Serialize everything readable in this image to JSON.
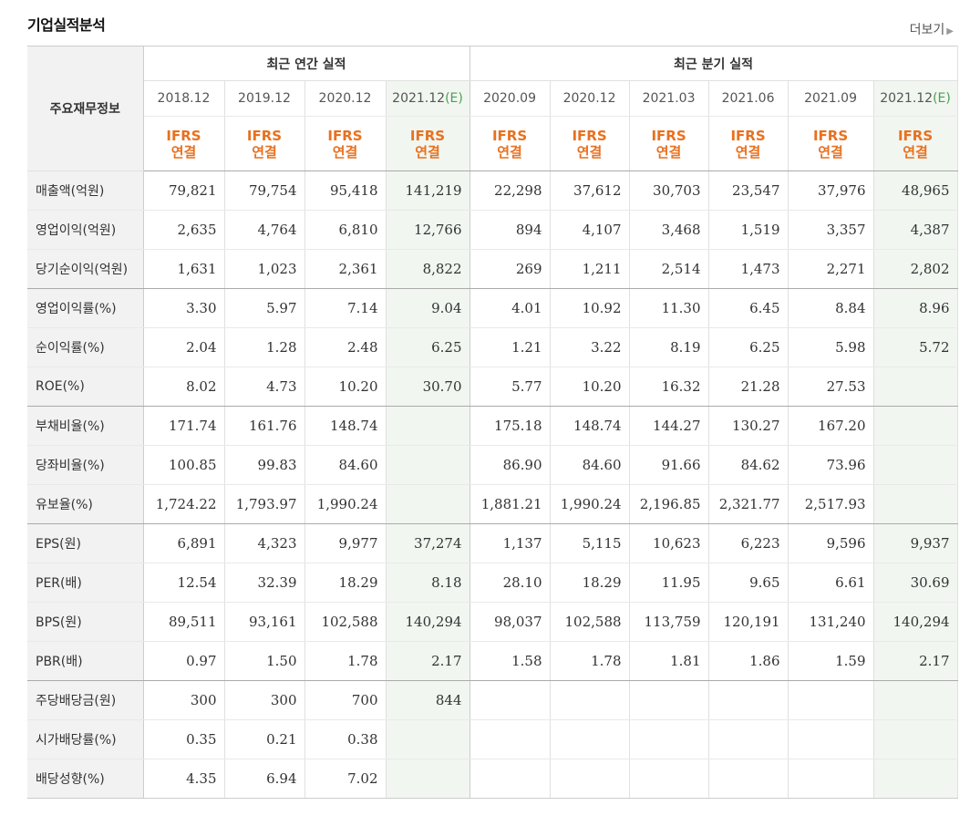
{
  "header": {
    "title": "기업실적분석",
    "more_label": "더보기"
  },
  "table": {
    "row_header_title": "주요재무정보",
    "annual_group_label": "최근 연간 실적",
    "quarter_group_label": "최근 분기 실적",
    "ifrs_line1": "IFRS",
    "ifrs_line2": "연결",
    "estimate_mark": "(E)",
    "annual_periods": [
      "2018.12",
      "2019.12",
      "2020.12",
      "2021.12"
    ],
    "annual_estimate": [
      false,
      false,
      false,
      true
    ],
    "quarter_periods": [
      "2020.09",
      "2020.12",
      "2021.03",
      "2021.06",
      "2021.09",
      "2021.12"
    ],
    "quarter_estimate": [
      false,
      false,
      false,
      false,
      false,
      true
    ],
    "rows": [
      {
        "label": "매출액(억원)",
        "annual": [
          "79,821",
          "79,754",
          "95,418",
          "141,219"
        ],
        "quarter": [
          "22,298",
          "37,612",
          "30,703",
          "23,547",
          "37,976",
          "48,965"
        ]
      },
      {
        "label": "영업이익(억원)",
        "annual": [
          "2,635",
          "4,764",
          "6,810",
          "12,766"
        ],
        "quarter": [
          "894",
          "4,107",
          "3,468",
          "1,519",
          "3,357",
          "4,387"
        ]
      },
      {
        "label": "당기순이익(억원)",
        "annual": [
          "1,631",
          "1,023",
          "2,361",
          "8,822"
        ],
        "quarter": [
          "269",
          "1,211",
          "2,514",
          "1,473",
          "2,271",
          "2,802"
        ],
        "group_end": true
      },
      {
        "label": "영업이익률(%)",
        "annual": [
          "3.30",
          "5.97",
          "7.14",
          "9.04"
        ],
        "quarter": [
          "4.01",
          "10.92",
          "11.30",
          "6.45",
          "8.84",
          "8.96"
        ]
      },
      {
        "label": "순이익률(%)",
        "annual": [
          "2.04",
          "1.28",
          "2.48",
          "6.25"
        ],
        "quarter": [
          "1.21",
          "3.22",
          "8.19",
          "6.25",
          "5.98",
          "5.72"
        ]
      },
      {
        "label": "ROE(%)",
        "annual": [
          "8.02",
          "4.73",
          "10.20",
          "30.70"
        ],
        "quarter": [
          "5.77",
          "10.20",
          "16.32",
          "21.28",
          "27.53",
          ""
        ],
        "group_end": true
      },
      {
        "label": "부채비율(%)",
        "annual": [
          "171.74",
          "161.76",
          "148.74",
          ""
        ],
        "quarter": [
          "175.18",
          "148.74",
          "144.27",
          "130.27",
          "167.20",
          ""
        ]
      },
      {
        "label": "당좌비율(%)",
        "annual": [
          "100.85",
          "99.83",
          "84.60",
          ""
        ],
        "quarter": [
          "86.90",
          "84.60",
          "91.66",
          "84.62",
          "73.96",
          ""
        ]
      },
      {
        "label": "유보율(%)",
        "annual": [
          "1,724.22",
          "1,793.97",
          "1,990.24",
          ""
        ],
        "quarter": [
          "1,881.21",
          "1,990.24",
          "2,196.85",
          "2,321.77",
          "2,517.93",
          ""
        ],
        "group_end": true
      },
      {
        "label": "EPS(원)",
        "annual": [
          "6,891",
          "4,323",
          "9,977",
          "37,274"
        ],
        "quarter": [
          "1,137",
          "5,115",
          "10,623",
          "6,223",
          "9,596",
          "9,937"
        ]
      },
      {
        "label": "PER(배)",
        "annual": [
          "12.54",
          "32.39",
          "18.29",
          "8.18"
        ],
        "quarter": [
          "28.10",
          "18.29",
          "11.95",
          "9.65",
          "6.61",
          "30.69"
        ]
      },
      {
        "label": "BPS(원)",
        "annual": [
          "89,511",
          "93,161",
          "102,588",
          "140,294"
        ],
        "quarter": [
          "98,037",
          "102,588",
          "113,759",
          "120,191",
          "131,240",
          "140,294"
        ]
      },
      {
        "label": "PBR(배)",
        "annual": [
          "0.97",
          "1.50",
          "1.78",
          "2.17"
        ],
        "quarter": [
          "1.58",
          "1.78",
          "1.81",
          "1.86",
          "1.59",
          "2.17"
        ],
        "group_end": true
      },
      {
        "label": "주당배당금(원)",
        "annual": [
          "300",
          "300",
          "700",
          "844"
        ],
        "quarter": [
          "",
          "",
          "",
          "",
          "",
          ""
        ]
      },
      {
        "label": "시가배당률(%)",
        "annual": [
          "0.35",
          "0.21",
          "0.38",
          ""
        ],
        "quarter": [
          "",
          "",
          "",
          "",
          "",
          ""
        ]
      },
      {
        "label": "배당성향(%)",
        "annual": [
          "4.35",
          "6.94",
          "7.02",
          ""
        ],
        "quarter": [
          "",
          "",
          "",
          "",
          "",
          ""
        ],
        "last": true
      }
    ]
  }
}
